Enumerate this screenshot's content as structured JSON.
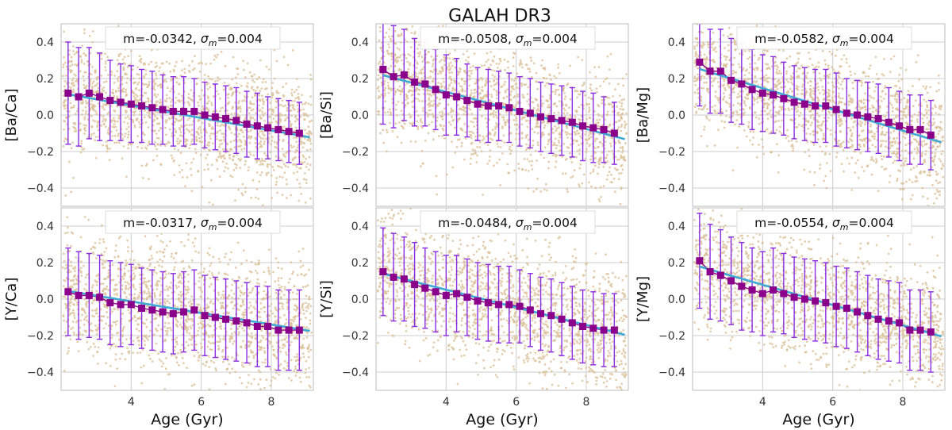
{
  "figure_title": "GALAH DR3",
  "colors": {
    "scatter": "#d9bf95",
    "binned": "#8b008b",
    "errorbar": "#8a2be2",
    "fit": "#3fa9d6",
    "grid": "#cccccc",
    "frame": "#bdbdbd",
    "text": "#333333"
  },
  "chart_data": [
    {
      "type": "scatter",
      "ylabel": "[Ba/Ca]",
      "xlabel": "",
      "annotation": {
        "m": "m=-0.0342, ",
        "sigma_symbol": "σ",
        "sigma_sub": "m",
        "sigma_value": "=0.004"
      },
      "xlim": [
        2.0,
        9.2
      ],
      "ylim": [
        -0.5,
        0.5
      ],
      "xticks": [
        4,
        6,
        8
      ],
      "yticks": [
        0.4,
        0.2,
        0.0,
        -0.2,
        -0.4
      ],
      "ytick_labels": [
        "0.4",
        "0.2",
        "0.0",
        "−0.2",
        "−0.4"
      ],
      "xtick_labels": [],
      "scatter_sigma": 0.16,
      "fit": {
        "slope": -0.0342,
        "intercept": 0.189
      },
      "binned": {
        "x": [
          2.2,
          2.5,
          2.8,
          3.1,
          3.4,
          3.7,
          4.0,
          4.3,
          4.6,
          4.9,
          5.2,
          5.5,
          5.8,
          6.1,
          6.4,
          6.7,
          7.0,
          7.3,
          7.6,
          7.9,
          8.2,
          8.5,
          8.8
        ],
        "y": [
          0.12,
          0.1,
          0.12,
          0.1,
          0.08,
          0.07,
          0.06,
          0.05,
          0.04,
          0.03,
          0.02,
          0.02,
          0.02,
          0.0,
          -0.01,
          -0.02,
          -0.03,
          -0.05,
          -0.06,
          -0.07,
          -0.08,
          -0.09,
          -0.1
        ],
        "err": [
          0.28,
          0.27,
          0.25,
          0.24,
          0.22,
          0.21,
          0.21,
          0.2,
          0.2,
          0.19,
          0.19,
          0.19,
          0.18,
          0.18,
          0.18,
          0.18,
          0.18,
          0.18,
          0.18,
          0.17,
          0.17,
          0.17,
          0.17
        ]
      }
    },
    {
      "type": "scatter",
      "ylabel": "[Ba/Si]",
      "xlabel": "",
      "annotation": {
        "m": "m=-0.0508, ",
        "sigma_symbol": "σ",
        "sigma_sub": "m",
        "sigma_value": "=0.004"
      },
      "xlim": [
        2.0,
        9.2
      ],
      "ylim": [
        -0.5,
        0.5
      ],
      "xticks": [
        4,
        6,
        8
      ],
      "yticks": [
        0.4,
        0.2,
        0.0,
        -0.2,
        -0.4
      ],
      "ytick_labels": [
        "0.4",
        "0.2",
        "0.0",
        "−0.2",
        "−0.4"
      ],
      "xtick_labels": [],
      "scatter_sigma": 0.17,
      "fit": {
        "slope": -0.0508,
        "intercept": 0.33
      },
      "binned": {
        "x": [
          2.2,
          2.5,
          2.8,
          3.1,
          3.4,
          3.7,
          4.0,
          4.3,
          4.6,
          4.9,
          5.2,
          5.5,
          5.8,
          6.1,
          6.4,
          6.7,
          7.0,
          7.3,
          7.6,
          7.9,
          8.2,
          8.5,
          8.8
        ],
        "y": [
          0.25,
          0.21,
          0.22,
          0.18,
          0.17,
          0.14,
          0.11,
          0.1,
          0.08,
          0.06,
          0.05,
          0.05,
          0.04,
          0.02,
          0.01,
          -0.01,
          -0.02,
          -0.03,
          -0.04,
          -0.06,
          -0.07,
          -0.08,
          -0.1
        ],
        "err": [
          0.3,
          0.28,
          0.25,
          0.24,
          0.23,
          0.22,
          0.22,
          0.21,
          0.2,
          0.2,
          0.2,
          0.19,
          0.19,
          0.19,
          0.19,
          0.19,
          0.19,
          0.19,
          0.19,
          0.19,
          0.19,
          0.18,
          0.17
        ]
      }
    },
    {
      "type": "scatter",
      "ylabel": "[Ba/Mg]",
      "xlabel": "",
      "annotation": {
        "m": "m=-0.0582, ",
        "sigma_symbol": "σ",
        "sigma_sub": "m",
        "sigma_value": "=0.004"
      },
      "xlim": [
        2.0,
        9.2
      ],
      "ylim": [
        -0.5,
        0.5
      ],
      "xticks": [
        4,
        6,
        8
      ],
      "yticks": [
        0.4,
        0.2,
        0.0,
        -0.2,
        -0.4
      ],
      "ytick_labels": [
        "0.4",
        "0.2",
        "0.0",
        "−0.2",
        "−0.4"
      ],
      "xtick_labels": [],
      "scatter_sigma": 0.16,
      "fit": {
        "slope": -0.0582,
        "intercept": 0.38
      },
      "binned": {
        "x": [
          2.2,
          2.5,
          2.8,
          3.1,
          3.4,
          3.7,
          4.0,
          4.3,
          4.6,
          4.9,
          5.2,
          5.5,
          5.8,
          6.1,
          6.4,
          6.7,
          7.0,
          7.3,
          7.6,
          7.9,
          8.2,
          8.5,
          8.8
        ],
        "y": [
          0.29,
          0.24,
          0.24,
          0.19,
          0.17,
          0.14,
          0.12,
          0.11,
          0.09,
          0.07,
          0.06,
          0.05,
          0.05,
          0.03,
          0.01,
          0.0,
          -0.01,
          -0.02,
          -0.04,
          -0.06,
          -0.08,
          -0.08,
          -0.11
        ],
        "err": [
          0.24,
          0.23,
          0.23,
          0.23,
          0.22,
          0.22,
          0.21,
          0.21,
          0.2,
          0.2,
          0.2,
          0.2,
          0.2,
          0.2,
          0.19,
          0.19,
          0.19,
          0.19,
          0.19,
          0.19,
          0.19,
          0.19,
          0.19
        ]
      }
    },
    {
      "type": "scatter",
      "ylabel": "[Y/Ca]",
      "xlabel": "Age (Gyr)",
      "annotation": {
        "m": "m=-0.0317, ",
        "sigma_symbol": "σ",
        "sigma_sub": "m",
        "sigma_value": "=0.004"
      },
      "xlim": [
        2.0,
        9.2
      ],
      "ylim": [
        -0.5,
        0.5
      ],
      "xticks": [
        4,
        6,
        8
      ],
      "yticks": [
        0.4,
        0.2,
        0.0,
        -0.2,
        -0.4
      ],
      "ytick_labels": [
        "0.4",
        "0.2",
        "0.0",
        "−0.2",
        "−0.4"
      ],
      "xtick_labels": [
        "4",
        "6",
        "8"
      ],
      "scatter_sigma": 0.17,
      "fit": {
        "slope": -0.0317,
        "intercept": 0.114
      },
      "binned": {
        "x": [
          2.2,
          2.5,
          2.8,
          3.1,
          3.4,
          3.7,
          4.0,
          4.3,
          4.6,
          4.9,
          5.2,
          5.5,
          5.8,
          6.1,
          6.4,
          6.7,
          7.0,
          7.3,
          7.6,
          7.9,
          8.2,
          8.5,
          8.8
        ],
        "y": [
          0.04,
          0.02,
          0.02,
          0.01,
          -0.02,
          -0.03,
          -0.03,
          -0.05,
          -0.06,
          -0.07,
          -0.08,
          -0.07,
          -0.06,
          -0.09,
          -0.1,
          -0.11,
          -0.12,
          -0.13,
          -0.15,
          -0.15,
          -0.17,
          -0.17,
          -0.17
        ],
        "err": [
          0.24,
          0.24,
          0.23,
          0.23,
          0.23,
          0.23,
          0.22,
          0.22,
          0.22,
          0.22,
          0.22,
          0.22,
          0.22,
          0.22,
          0.22,
          0.22,
          0.22,
          0.22,
          0.22,
          0.22,
          0.22,
          0.22,
          0.22
        ]
      }
    },
    {
      "type": "scatter",
      "ylabel": "[Y/Si]",
      "xlabel": "Age (Gyr)",
      "annotation": {
        "m": "m=-0.0484, ",
        "sigma_symbol": "σ",
        "sigma_sub": "m",
        "sigma_value": "=0.004"
      },
      "xlim": [
        2.0,
        9.2
      ],
      "ylim": [
        -0.5,
        0.5
      ],
      "xticks": [
        4,
        6,
        8
      ],
      "yticks": [
        0.4,
        0.2,
        0.0,
        -0.2,
        -0.4
      ],
      "ytick_labels": [
        "0.4",
        "0.2",
        "0.0",
        "−0.2",
        "−0.4"
      ],
      "xtick_labels": [
        "4",
        "6",
        "8"
      ],
      "scatter_sigma": 0.17,
      "fit": {
        "slope": -0.0484,
        "intercept": 0.245
      },
      "binned": {
        "x": [
          2.2,
          2.5,
          2.8,
          3.1,
          3.4,
          3.7,
          4.0,
          4.3,
          4.6,
          4.9,
          5.2,
          5.5,
          5.8,
          6.1,
          6.4,
          6.7,
          7.0,
          7.3,
          7.6,
          7.9,
          8.2,
          8.5,
          8.8
        ],
        "y": [
          0.15,
          0.12,
          0.11,
          0.08,
          0.06,
          0.04,
          0.02,
          0.03,
          0.01,
          -0.01,
          -0.02,
          -0.03,
          -0.03,
          -0.04,
          -0.06,
          -0.08,
          -0.09,
          -0.11,
          -0.13,
          -0.15,
          -0.16,
          -0.17,
          -0.17
        ],
        "err": [
          0.24,
          0.24,
          0.23,
          0.23,
          0.22,
          0.22,
          0.22,
          0.21,
          0.21,
          0.21,
          0.21,
          0.21,
          0.21,
          0.2,
          0.2,
          0.2,
          0.2,
          0.2,
          0.2,
          0.2,
          0.2,
          0.2,
          0.2
        ]
      }
    },
    {
      "type": "scatter",
      "ylabel": "[Y/Mg]",
      "xlabel": "Age (Gyr)",
      "annotation": {
        "m": "m=-0.0554, ",
        "sigma_symbol": "σ",
        "sigma_sub": "m",
        "sigma_value": "=0.004"
      },
      "xlim": [
        2.0,
        9.2
      ],
      "ylim": [
        -0.5,
        0.5
      ],
      "xticks": [
        4,
        6,
        8
      ],
      "yticks": [
        0.4,
        0.2,
        0.0,
        -0.2,
        -0.4
      ],
      "ytick_labels": [
        "0.4",
        "0.2",
        "0.0",
        "−0.2",
        "−0.4"
      ],
      "xtick_labels": [
        "4",
        "6",
        "8"
      ],
      "scatter_sigma": 0.16,
      "fit": {
        "slope": -0.0554,
        "intercept": 0.3
      },
      "binned": {
        "x": [
          2.2,
          2.5,
          2.8,
          3.1,
          3.4,
          3.7,
          4.0,
          4.3,
          4.6,
          4.9,
          5.2,
          5.5,
          5.8,
          6.1,
          6.4,
          6.7,
          7.0,
          7.3,
          7.6,
          7.9,
          8.2,
          8.5,
          8.8
        ],
        "y": [
          0.21,
          0.15,
          0.13,
          0.1,
          0.07,
          0.05,
          0.03,
          0.05,
          0.03,
          0.01,
          0.0,
          -0.01,
          -0.02,
          -0.04,
          -0.05,
          -0.07,
          -0.09,
          -0.11,
          -0.12,
          -0.13,
          -0.17,
          -0.17,
          -0.18
        ],
        "err": [
          0.26,
          0.26,
          0.25,
          0.24,
          0.24,
          0.23,
          0.23,
          0.23,
          0.22,
          0.22,
          0.22,
          0.22,
          0.22,
          0.22,
          0.22,
          0.22,
          0.22,
          0.22,
          0.22,
          0.22,
          0.22,
          0.22,
          0.22
        ]
      }
    }
  ]
}
